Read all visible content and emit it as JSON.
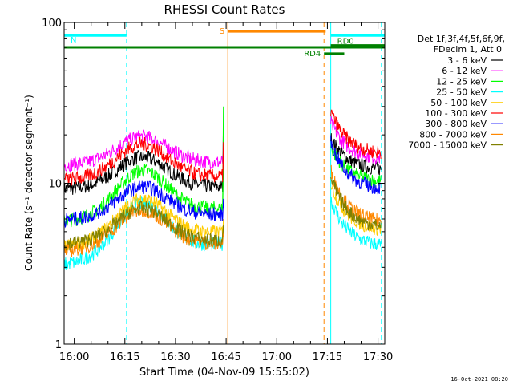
{
  "chart_data": {
    "type": "line",
    "title": "RHESSI Count Rates",
    "xlabel": "Start Time (04-Nov-09 15:55:02)",
    "ylabel": "Count Rate (s⁻¹ detector segment⁻¹)",
    "yscale": "log",
    "ylim": [
      1,
      100
    ],
    "y_ticks": [
      "1",
      "10",
      "100"
    ],
    "xlim_minutes": [
      -3,
      92
    ],
    "x_ticks": [
      "16:00",
      "16:15",
      "16:30",
      "16:45",
      "17:00",
      "17:15",
      "17:30"
    ],
    "x_tick_minutes": [
      0,
      15,
      30,
      45,
      60,
      75,
      90
    ],
    "legend_placement": "right",
    "legend_header": [
      "Det 1f,3f,4f,5f,6f,9f,",
      "FDecim 1, Att 0"
    ],
    "series": [
      {
        "name": "3 - 6 keV",
        "color": "#000000",
        "segment1": {
          "start": [
            -3,
            9.2
          ],
          "peak": [
            20,
            14.5
          ],
          "end": [
            44,
            9.5
          ],
          "spike": 15
        },
        "segment2": {
          "start": [
            76,
            19
          ],
          "end": [
            91,
            12
          ]
        }
      },
      {
        "name": "6 - 12 keV",
        "color": "#ff00ff",
        "segment1": {
          "start": [
            -3,
            13
          ],
          "peak": [
            20,
            19.5
          ],
          "end": [
            44,
            13.5
          ],
          "spike": 22
        },
        "segment2": {
          "start": [
            76,
            24
          ],
          "end": [
            91,
            14
          ]
        }
      },
      {
        "name": "12 - 25 keV",
        "color": "#00ff00",
        "segment1": {
          "start": [
            -3,
            5.8
          ],
          "peak": [
            20,
            12
          ],
          "end": [
            44,
            7
          ],
          "spike": 30
        },
        "segment2": {
          "start": [
            76,
            17
          ],
          "end": [
            91,
            10
          ]
        }
      },
      {
        "name": "25 - 50 keV",
        "color": "#00ffff",
        "segment1": {
          "start": [
            -3,
            3.1
          ],
          "peak": [
            20,
            7.5
          ],
          "end": [
            44,
            4.2
          ],
          "spike": 5
        },
        "segment2": {
          "start": [
            76,
            8
          ],
          "end": [
            91,
            4
          ]
        }
      },
      {
        "name": "50 - 100 keV",
        "color": "#ffcc00",
        "segment1": {
          "start": [
            -3,
            4
          ],
          "peak": [
            20,
            8
          ],
          "end": [
            44,
            5
          ],
          "spike": 6
        },
        "segment2": {
          "start": [
            76,
            10
          ],
          "end": [
            91,
            5
          ]
        }
      },
      {
        "name": "100 - 300 keV",
        "color": "#ff0000",
        "segment1": {
          "start": [
            -3,
            10.5
          ],
          "peak": [
            20,
            17.5
          ],
          "end": [
            44,
            11
          ],
          "spike": 18
        },
        "segment2": {
          "start": [
            76,
            28
          ],
          "end": [
            91,
            15
          ]
        }
      },
      {
        "name": "300 - 800 keV",
        "color": "#0000ff",
        "segment1": {
          "start": [
            -3,
            5.9
          ],
          "peak": [
            20,
            9.5
          ],
          "end": [
            44,
            6.4
          ],
          "spike": 8
        },
        "segment2": {
          "start": [
            76,
            18
          ],
          "end": [
            91,
            9
          ]
        }
      },
      {
        "name": "800 - 7000 keV",
        "color": "#ff8800",
        "segment1": {
          "start": [
            -3,
            3.8
          ],
          "peak": [
            20,
            6.8
          ],
          "end": [
            44,
            4.2
          ],
          "spike": 5
        },
        "segment2": {
          "start": [
            76,
            12
          ],
          "end": [
            91,
            5.6
          ]
        }
      },
      {
        "name": "7000 - 15000 keV",
        "color": "#808000",
        "segment1": {
          "start": [
            -3,
            4.2
          ],
          "peak": [
            20,
            7
          ],
          "end": [
            44,
            4.4
          ],
          "spike": 5.5
        },
        "segment2": {
          "start": [
            76,
            11
          ],
          "end": [
            91,
            5.2
          ]
        }
      }
    ],
    "vertical_lines": [
      {
        "minute": -3,
        "color": "#00ffff",
        "style": "solid"
      },
      {
        "minute": 15.5,
        "color": "#00ffff",
        "style": "dashed"
      },
      {
        "minute": 45.5,
        "color": "#ff8800",
        "style": "solid"
      },
      {
        "minute": 74,
        "color": "#ff8800",
        "style": "dashed"
      },
      {
        "minute": 76,
        "color": "#00ffff",
        "style": "solid"
      },
      {
        "minute": 91,
        "color": "#00ffff",
        "style": "dashed"
      }
    ],
    "bars": [
      {
        "label": "N",
        "color": "#00ffff",
        "start": -3,
        "end": 15.5,
        "level": 83
      },
      {
        "label": "",
        "color": "#00ffff",
        "start": 76,
        "end": 92,
        "level": 83
      },
      {
        "label": "S",
        "color": "#ff8800",
        "start": 45.5,
        "end": 74.5,
        "level": 88
      },
      {
        "label": "",
        "color": "#008000",
        "start": -3,
        "end": 92,
        "level": 70
      },
      {
        "label": "RD4",
        "color": "#008000",
        "start": 74,
        "end": 80,
        "level": 64
      },
      {
        "label": "RD0",
        "color": "#008000",
        "start": 76,
        "end": 92,
        "level": 72
      }
    ]
  },
  "footer": {
    "date": "16-Oct-2021 08:20"
  }
}
